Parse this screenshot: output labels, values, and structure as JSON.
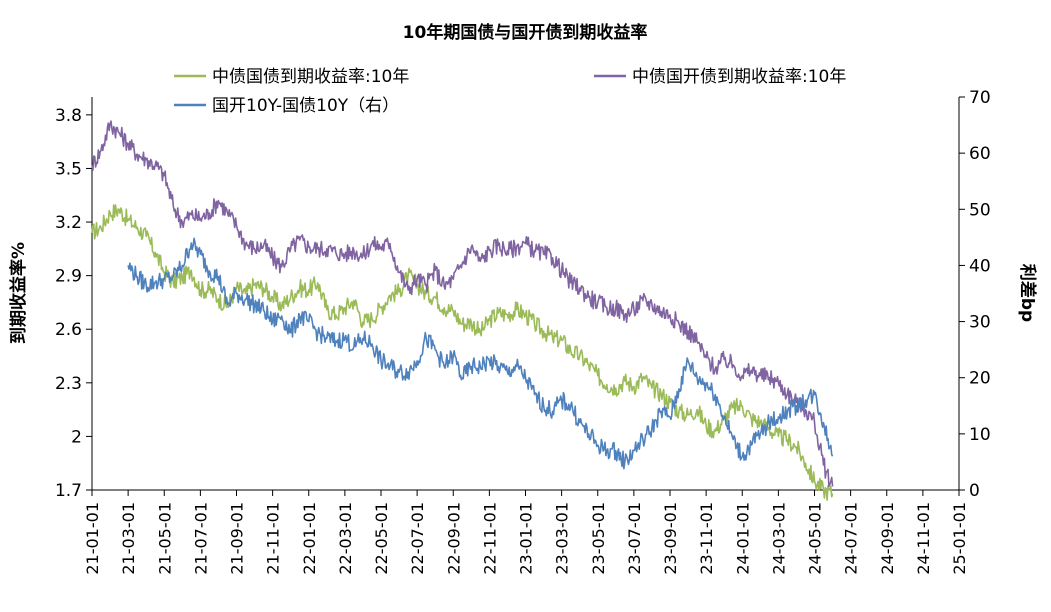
{
  "chart_data": {
    "type": "line",
    "title": "10年期国债与国开债到期收益率",
    "ylabel_left": "到期收益率%",
    "ylabel_right": "利差bp",
    "y_left": {
      "min": 1.7,
      "max": 3.9,
      "ticks": [
        "1.7",
        "2",
        "2.3",
        "2.6",
        "2.9",
        "3.2",
        "3.5",
        "3.8"
      ]
    },
    "y_right": {
      "min": 0,
      "max": 70,
      "ticks": [
        "0",
        "10",
        "20",
        "30",
        "40",
        "50",
        "60",
        "70"
      ]
    },
    "x_ticks": [
      "21-01-01",
      "21-03-01",
      "21-05-01",
      "21-07-01",
      "21-09-01",
      "21-11-01",
      "22-01-01",
      "22-03-01",
      "22-05-01",
      "22-07-01",
      "22-09-01",
      "22-11-01",
      "23-01-01",
      "23-03-01",
      "23-05-01",
      "23-07-01",
      "23-09-01",
      "23-11-01",
      "24-01-01",
      "24-03-01",
      "24-05-01",
      "24-07-01",
      "24-09-01",
      "24-11-01",
      "25-01-01"
    ],
    "legend": {
      "placement": "top"
    },
    "series": [
      {
        "name": "中债国债到期收益率:10年",
        "color": "#9BBB59",
        "axis": "left",
        "points": [
          [
            0,
            3.14
          ],
          [
            0.5,
            3.17
          ],
          [
            1,
            3.25
          ],
          [
            1.5,
            3.27
          ],
          [
            2,
            3.21
          ],
          [
            2.5,
            3.17
          ],
          [
            3,
            3.12
          ],
          [
            3.5,
            3.03
          ],
          [
            4,
            2.92
          ],
          [
            4.5,
            2.86
          ],
          [
            5,
            2.89
          ],
          [
            5.5,
            2.93
          ],
          [
            6,
            2.82
          ],
          [
            6.5,
            2.82
          ],
          [
            7,
            2.77
          ],
          [
            7.5,
            2.73
          ],
          [
            8,
            2.83
          ],
          [
            8.5,
            2.8
          ],
          [
            9,
            2.85
          ],
          [
            9.5,
            2.83
          ],
          [
            10,
            2.78
          ],
          [
            10.5,
            2.73
          ],
          [
            11,
            2.78
          ],
          [
            11.5,
            2.83
          ],
          [
            12,
            2.82
          ],
          [
            12.5,
            2.86
          ],
          [
            13,
            2.71
          ],
          [
            13.5,
            2.68
          ],
          [
            14,
            2.72
          ],
          [
            14.5,
            2.76
          ],
          [
            15,
            2.64
          ],
          [
            15.5,
            2.66
          ],
          [
            16,
            2.72
          ],
          [
            16.5,
            2.79
          ],
          [
            17,
            2.81
          ],
          [
            17.5,
            2.9
          ],
          [
            18,
            2.85
          ],
          [
            18.5,
            2.8
          ],
          [
            19,
            2.78
          ],
          [
            19.5,
            2.72
          ],
          [
            20,
            2.7
          ],
          [
            20.5,
            2.63
          ],
          [
            21,
            2.64
          ],
          [
            21.5,
            2.58
          ],
          [
            22,
            2.65
          ],
          [
            22.5,
            2.69
          ],
          [
            23,
            2.68
          ],
          [
            23.5,
            2.71
          ],
          [
            24,
            2.68
          ],
          [
            24.5,
            2.63
          ],
          [
            25,
            2.59
          ],
          [
            25.5,
            2.55
          ],
          [
            26,
            2.54
          ],
          [
            26.5,
            2.48
          ],
          [
            27,
            2.45
          ],
          [
            27.5,
            2.4
          ],
          [
            28,
            2.34
          ],
          [
            28.5,
            2.29
          ],
          [
            29,
            2.27
          ],
          [
            29.5,
            2.31
          ],
          [
            30,
            2.28
          ],
          [
            30.5,
            2.33
          ],
          [
            31,
            2.27
          ],
          [
            31.5,
            2.24
          ],
          [
            32,
            2.19
          ],
          [
            32.5,
            2.14
          ],
          [
            33,
            2.12
          ],
          [
            33.5,
            2.15
          ],
          [
            34,
            2.06
          ],
          [
            34.5,
            2.03
          ],
          [
            35,
            2.1
          ],
          [
            35.5,
            2.16
          ],
          [
            36,
            2.17
          ],
          [
            36.5,
            2.1
          ],
          [
            37,
            2.08
          ],
          [
            37.5,
            2.04
          ],
          [
            38,
            2.0
          ],
          [
            38.5,
            1.98
          ],
          [
            39,
            1.94
          ],
          [
            39.5,
            1.85
          ],
          [
            40,
            1.75
          ],
          [
            40.5,
            1.7
          ],
          [
            41,
            1.68
          ]
        ]
      },
      {
        "name": "中债国开债到期收益率:10年",
        "color": "#8064A2",
        "axis": "left",
        "points": [
          [
            0,
            3.52
          ],
          [
            0.5,
            3.6
          ],
          [
            1,
            3.75
          ],
          [
            1.5,
            3.7
          ],
          [
            2,
            3.64
          ],
          [
            2.5,
            3.58
          ],
          [
            3,
            3.55
          ],
          [
            3.5,
            3.52
          ],
          [
            4,
            3.46
          ],
          [
            4.5,
            3.29
          ],
          [
            5,
            3.2
          ],
          [
            5.5,
            3.24
          ],
          [
            6,
            3.22
          ],
          [
            6.5,
            3.25
          ],
          [
            7,
            3.32
          ],
          [
            7.5,
            3.25
          ],
          [
            8,
            3.18
          ],
          [
            8.5,
            3.08
          ],
          [
            9,
            3.05
          ],
          [
            9.5,
            3.07
          ],
          [
            10,
            3.0
          ],
          [
            10.5,
            2.95
          ],
          [
            11,
            3.05
          ],
          [
            11.5,
            3.1
          ],
          [
            12,
            3.06
          ],
          [
            12.5,
            3.05
          ],
          [
            13,
            3.05
          ],
          [
            13.5,
            3.03
          ],
          [
            14,
            3.02
          ],
          [
            14.5,
            3.04
          ],
          [
            15,
            3.01
          ],
          [
            15.5,
            3.08
          ],
          [
            16,
            3.06
          ],
          [
            16.5,
            3.08
          ],
          [
            17,
            2.92
          ],
          [
            17.5,
            2.82
          ],
          [
            18,
            2.88
          ],
          [
            18.5,
            2.85
          ],
          [
            19,
            2.93
          ],
          [
            19.5,
            2.84
          ],
          [
            20,
            2.88
          ],
          [
            20.5,
            2.97
          ],
          [
            21,
            3.06
          ],
          [
            21.5,
            2.98
          ],
          [
            22,
            3.04
          ],
          [
            22.5,
            3.07
          ],
          [
            23,
            3.04
          ],
          [
            23.5,
            3.06
          ],
          [
            24,
            3.08
          ],
          [
            24.5,
            3.04
          ],
          [
            25,
            3.02
          ],
          [
            25.5,
            3.0
          ],
          [
            26,
            2.93
          ],
          [
            26.5,
            2.86
          ],
          [
            27,
            2.83
          ],
          [
            27.5,
            2.78
          ],
          [
            28,
            2.75
          ],
          [
            28.5,
            2.72
          ],
          [
            29,
            2.72
          ],
          [
            29.5,
            2.68
          ],
          [
            30,
            2.71
          ],
          [
            30.5,
            2.76
          ],
          [
            31,
            2.74
          ],
          [
            31.5,
            2.7
          ],
          [
            32,
            2.68
          ],
          [
            32.5,
            2.63
          ],
          [
            33,
            2.59
          ],
          [
            33.5,
            2.53
          ],
          [
            34,
            2.44
          ],
          [
            34.5,
            2.38
          ],
          [
            35,
            2.43
          ],
          [
            35.5,
            2.4
          ],
          [
            36,
            2.34
          ],
          [
            36.5,
            2.37
          ],
          [
            37,
            2.34
          ],
          [
            37.5,
            2.33
          ],
          [
            38,
            2.3
          ],
          [
            38.5,
            2.24
          ],
          [
            39,
            2.19
          ],
          [
            39.5,
            2.15
          ],
          [
            40,
            2.08
          ],
          [
            40.5,
            1.84
          ],
          [
            41,
            1.72
          ]
        ]
      },
      {
        "name": "国开10Y-国债10Y（右）",
        "color": "#4F81BD",
        "axis": "right",
        "points": [
          [
            2,
            40
          ],
          [
            2.5,
            38
          ],
          [
            3,
            36.5
          ],
          [
            3.5,
            37
          ],
          [
            4,
            37.5
          ],
          [
            4.5,
            38
          ],
          [
            5,
            40
          ],
          [
            5.5,
            44
          ],
          [
            6,
            42
          ],
          [
            6.5,
            39
          ],
          [
            7,
            38
          ],
          [
            7.5,
            33
          ],
          [
            8,
            35
          ],
          [
            8.5,
            34
          ],
          [
            9,
            33
          ],
          [
            9.5,
            32
          ],
          [
            10,
            30
          ],
          [
            10.5,
            31
          ],
          [
            11,
            28
          ],
          [
            11.5,
            31
          ],
          [
            12,
            30
          ],
          [
            12.5,
            28
          ],
          [
            13,
            27
          ],
          [
            13.5,
            26.5
          ],
          [
            14,
            27
          ],
          [
            14.5,
            25.5
          ],
          [
            15,
            27
          ],
          [
            15.5,
            26
          ],
          [
            16,
            23
          ],
          [
            16.5,
            22
          ],
          [
            17,
            21
          ],
          [
            17.5,
            21
          ],
          [
            18,
            23
          ],
          [
            18.5,
            27
          ],
          [
            19,
            25
          ],
          [
            19.5,
            22
          ],
          [
            20,
            24
          ],
          [
            20.5,
            20
          ],
          [
            21,
            22
          ],
          [
            21.5,
            22
          ],
          [
            22,
            23
          ],
          [
            22.5,
            22
          ],
          [
            23,
            21
          ],
          [
            23.5,
            22
          ],
          [
            24,
            20
          ],
          [
            24.5,
            17
          ],
          [
            25,
            15
          ],
          [
            25.5,
            14
          ],
          [
            26,
            16
          ],
          [
            26.5,
            15
          ],
          [
            27,
            12
          ],
          [
            27.5,
            10
          ],
          [
            28,
            8
          ],
          [
            28.5,
            7
          ],
          [
            29,
            7
          ],
          [
            29.5,
            5
          ],
          [
            30,
            7
          ],
          [
            30.5,
            9
          ],
          [
            31,
            11
          ],
          [
            31.5,
            14
          ],
          [
            32,
            13
          ],
          [
            32.5,
            18
          ],
          [
            33,
            23
          ],
          [
            33.5,
            20
          ],
          [
            34,
            19
          ],
          [
            34.5,
            17
          ],
          [
            35,
            13
          ],
          [
            35.5,
            9
          ],
          [
            36,
            6
          ],
          [
            36.5,
            8
          ],
          [
            37,
            10
          ],
          [
            37.5,
            12
          ],
          [
            38,
            13
          ],
          [
            38.5,
            14
          ],
          [
            39,
            15
          ],
          [
            39.5,
            16
          ],
          [
            40,
            17
          ],
          [
            40.5,
            12
          ],
          [
            41,
            6
          ]
        ]
      }
    ]
  }
}
